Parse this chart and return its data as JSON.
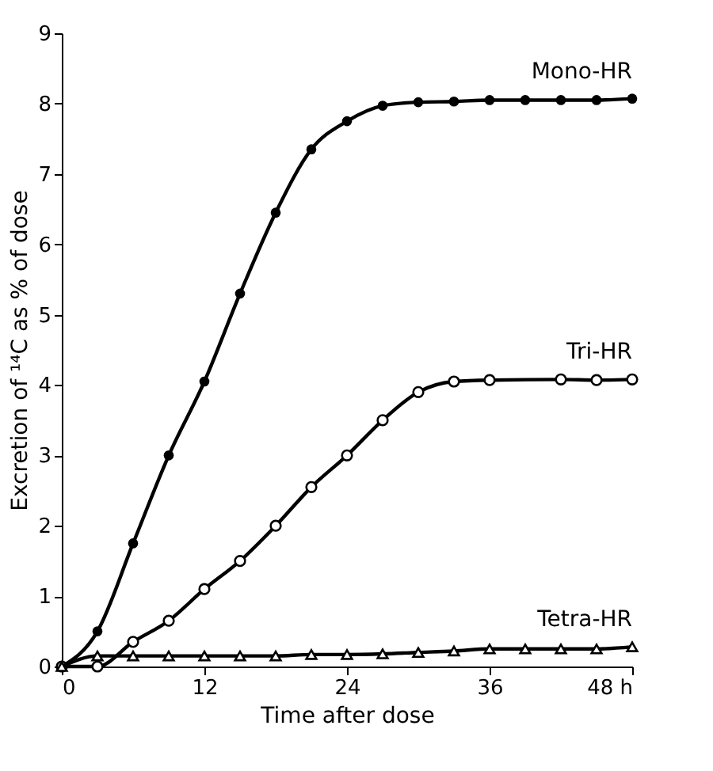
{
  "chart_data": {
    "type": "line",
    "xlabel": "Time after dose",
    "ylabel": "Excretion of ¹⁴C as % of dose",
    "xlim": [
      0,
      48
    ],
    "ylim": [
      0,
      9
    ],
    "xticks": [
      0,
      12,
      24,
      36,
      {
        "value": 48,
        "label": "48 h"
      }
    ],
    "yticks": [
      0,
      1,
      2,
      3,
      4,
      5,
      6,
      7,
      8,
      9
    ],
    "grid": false,
    "line_style": "solid",
    "series": [
      {
        "name": "Mono-HR",
        "color": "#000000",
        "marker": "circle",
        "x": [
          0,
          3,
          6,
          9,
          12,
          15,
          18,
          21,
          24,
          27,
          30,
          33,
          36,
          39,
          42,
          45,
          48
        ],
        "values": [
          0,
          0.5,
          1.75,
          3.0,
          4.05,
          5.3,
          6.45,
          7.35,
          7.75,
          7.97,
          8.02,
          8.03,
          8.05,
          8.05,
          8.05,
          8.05,
          8.07
        ]
      },
      {
        "name": "Tri-HR",
        "color": "#000000",
        "marker": "circle",
        "x": [
          0,
          3,
          6,
          9,
          12,
          15,
          18,
          21,
          24,
          27,
          30,
          33,
          36,
          42,
          45,
          48
        ],
        "values": [
          0,
          0.0,
          0.35,
          0.65,
          1.1,
          1.5,
          2.0,
          2.55,
          3.0,
          3.5,
          3.9,
          4.05,
          4.07,
          4.08,
          4.07,
          4.08
        ]
      },
      {
        "name": "Tetra-HR",
        "color": "#000000",
        "marker": "triangle",
        "x": [
          0,
          3,
          6,
          9,
          12,
          15,
          18,
          21,
          24,
          27,
          30,
          33,
          36,
          39,
          42,
          45,
          48
        ],
        "values": [
          0,
          0.15,
          0.15,
          0.15,
          0.15,
          0.15,
          0.15,
          0.17,
          0.17,
          0.18,
          0.2,
          0.22,
          0.25,
          0.25,
          0.25,
          0.25,
          0.28
        ]
      }
    ]
  }
}
